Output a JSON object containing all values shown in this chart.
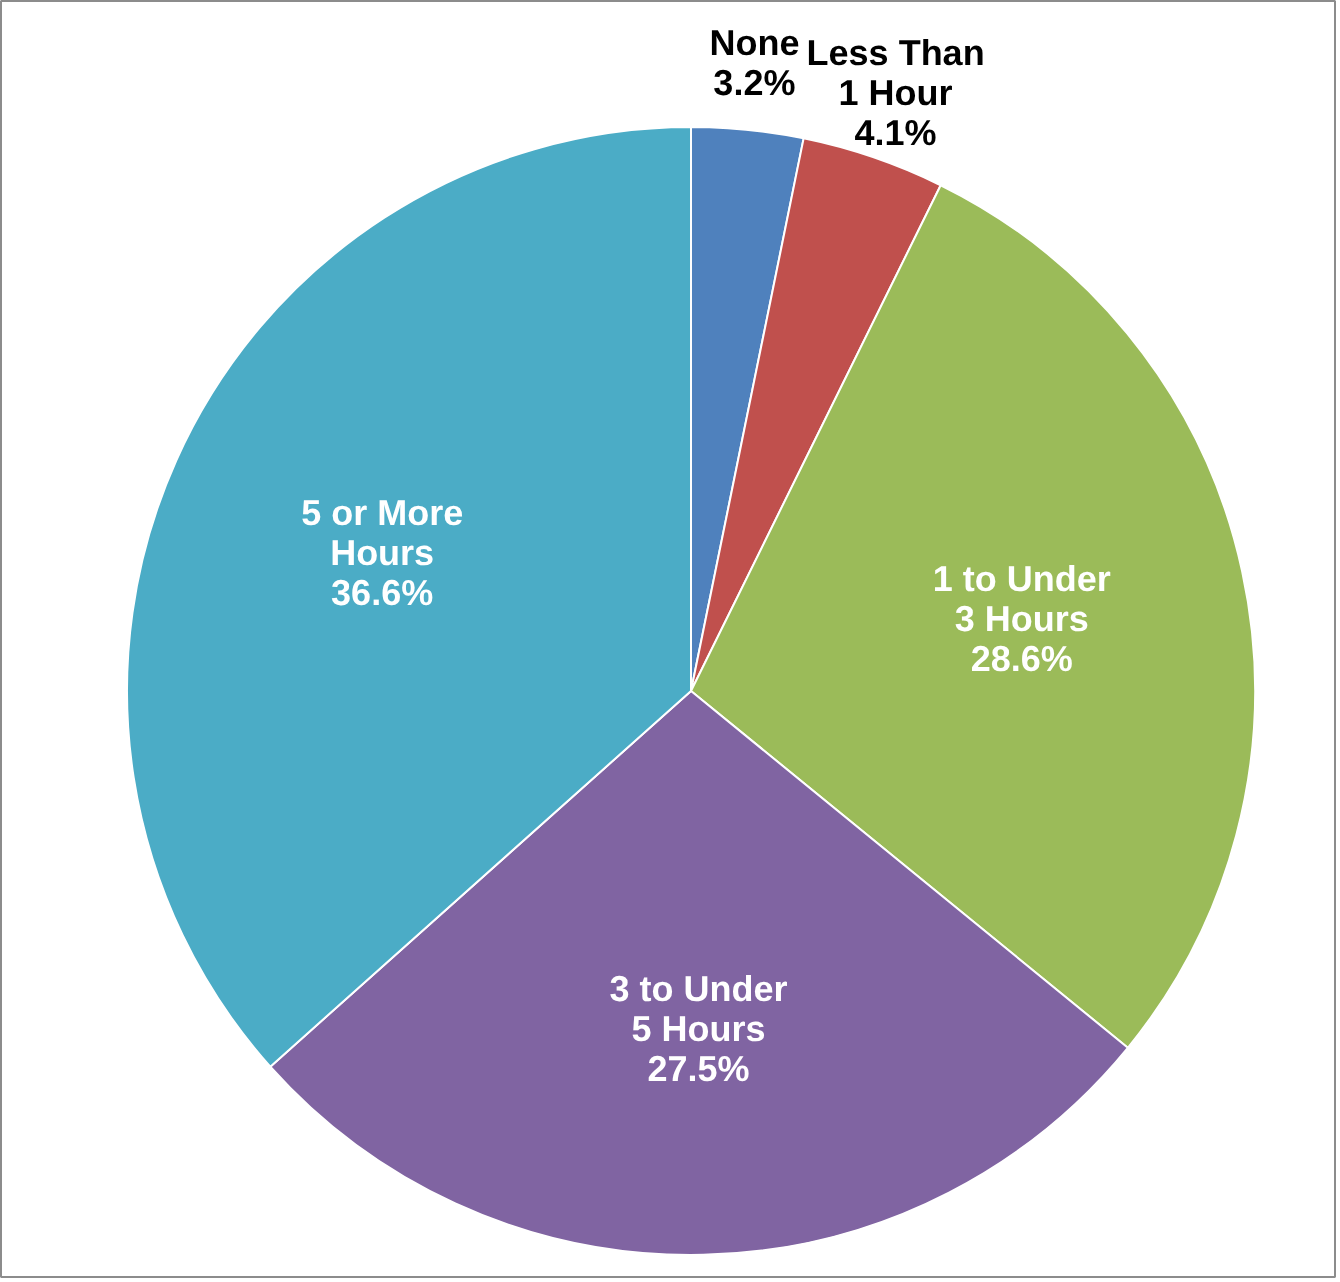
{
  "chart_data": {
    "type": "pie",
    "categories": [
      "None",
      "Less Than\n1 Hour",
      "1 to Under\n3 Hours",
      "3 to Under\n5 Hours",
      "5 or More\nHours"
    ],
    "values": [
      3.2,
      4.1,
      28.6,
      27.5,
      36.6
    ],
    "colors": [
      "#4f81bd",
      "#c0504d",
      "#9bbb59",
      "#8064a2",
      "#4bacc6"
    ],
    "value_labels": [
      "3.2%",
      "4.1%",
      "28.6%",
      "27.5%",
      "36.6%"
    ],
    "legend": false
  }
}
